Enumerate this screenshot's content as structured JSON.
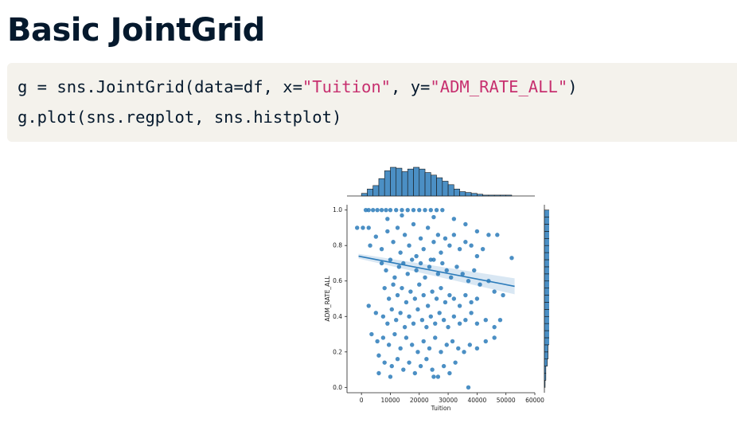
{
  "slide": {
    "title": "Basic JointGrid"
  },
  "code": {
    "line1": {
      "a": "g = sns.JointGrid(data=df, x=",
      "s1": "\"Tuition\"",
      "b": ", y=",
      "s2": "\"ADM_RATE_ALL\"",
      "c": ")"
    },
    "line2": "g.plot(sns.regplot, sns.histplot)"
  },
  "chart_data": {
    "type": "scatter",
    "kind": "jointgrid-regplot-histplot",
    "xlabel": "Tuition",
    "ylabel": "ADM_RATE_ALL",
    "xlim": [
      -5000,
      60000
    ],
    "ylim": [
      -0.03,
      1.03
    ],
    "x_ticks": [
      "0",
      "10000",
      "20000",
      "30000",
      "40000",
      "50000",
      "60000"
    ],
    "y_ticks": [
      "0.0",
      "0.2",
      "0.4",
      "0.6",
      "0.8",
      "1.0"
    ],
    "color": "#2b7bba",
    "edge_color": "#1a1a1a",
    "regression": {
      "x": [
        -1000,
        53000
      ],
      "y": [
        0.74,
        0.57
      ]
    },
    "points": [
      [
        1500,
        1.0
      ],
      [
        2500,
        1.0
      ],
      [
        4000,
        1.0
      ],
      [
        5500,
        1.0
      ],
      [
        7000,
        1.0
      ],
      [
        8500,
        1.0
      ],
      [
        10000,
        1.0
      ],
      [
        12000,
        1.0
      ],
      [
        14000,
        1.0
      ],
      [
        16000,
        1.0
      ],
      [
        18000,
        1.0
      ],
      [
        20000,
        1.0
      ],
      [
        22000,
        1.0
      ],
      [
        24000,
        1.0
      ],
      [
        26000,
        1.0
      ],
      [
        28000,
        1.0
      ],
      [
        -1500,
        0.9
      ],
      [
        500,
        0.9
      ],
      [
        2500,
        0.9
      ],
      [
        9000,
        0.95
      ],
      [
        14000,
        0.97
      ],
      [
        25000,
        0.96
      ],
      [
        32000,
        0.95
      ],
      [
        36000,
        0.92
      ],
      [
        40000,
        0.88
      ],
      [
        44000,
        0.86
      ],
      [
        47000,
        0.86
      ],
      [
        3000,
        0.8
      ],
      [
        5000,
        0.85
      ],
      [
        7000,
        0.78
      ],
      [
        9000,
        0.88
      ],
      [
        11000,
        0.82
      ],
      [
        12500,
        0.9
      ],
      [
        13500,
        0.76
      ],
      [
        15000,
        0.86
      ],
      [
        16500,
        0.8
      ],
      [
        18000,
        0.92
      ],
      [
        19000,
        0.74
      ],
      [
        20500,
        0.84
      ],
      [
        21500,
        0.78
      ],
      [
        23000,
        0.9
      ],
      [
        24000,
        0.72
      ],
      [
        25000,
        0.82
      ],
      [
        26500,
        0.86
      ],
      [
        27500,
        0.76
      ],
      [
        29000,
        0.84
      ],
      [
        30500,
        0.8
      ],
      [
        32000,
        0.86
      ],
      [
        34000,
        0.78
      ],
      [
        36000,
        0.82
      ],
      [
        38000,
        0.8
      ],
      [
        40000,
        0.74
      ],
      [
        42000,
        0.78
      ],
      [
        52000,
        0.73
      ],
      [
        7000,
        0.7
      ],
      [
        8500,
        0.66
      ],
      [
        10000,
        0.72
      ],
      [
        11500,
        0.62
      ],
      [
        13000,
        0.68
      ],
      [
        14500,
        0.7
      ],
      [
        16000,
        0.64
      ],
      [
        17500,
        0.72
      ],
      [
        19000,
        0.66
      ],
      [
        20500,
        0.7
      ],
      [
        22000,
        0.62
      ],
      [
        23500,
        0.68
      ],
      [
        25000,
        0.72
      ],
      [
        26500,
        0.64
      ],
      [
        28000,
        0.7
      ],
      [
        29500,
        0.66
      ],
      [
        31000,
        0.62
      ],
      [
        33000,
        0.68
      ],
      [
        35000,
        0.64
      ],
      [
        37000,
        0.6
      ],
      [
        39000,
        0.66
      ],
      [
        41000,
        0.58
      ],
      [
        44000,
        0.6
      ],
      [
        46000,
        0.54
      ],
      [
        49000,
        0.52
      ],
      [
        8000,
        0.56
      ],
      [
        9500,
        0.5
      ],
      [
        11000,
        0.58
      ],
      [
        12500,
        0.52
      ],
      [
        14000,
        0.56
      ],
      [
        15500,
        0.48
      ],
      [
        17000,
        0.54
      ],
      [
        18500,
        0.5
      ],
      [
        20000,
        0.58
      ],
      [
        21500,
        0.52
      ],
      [
        23000,
        0.46
      ],
      [
        24500,
        0.54
      ],
      [
        26000,
        0.5
      ],
      [
        27500,
        0.56
      ],
      [
        29000,
        0.48
      ],
      [
        30500,
        0.52
      ],
      [
        32000,
        0.5
      ],
      [
        34000,
        0.46
      ],
      [
        36000,
        0.52
      ],
      [
        38000,
        0.48
      ],
      [
        40000,
        0.5
      ],
      [
        2500,
        0.46
      ],
      [
        5000,
        0.42
      ],
      [
        7500,
        0.4
      ],
      [
        9000,
        0.36
      ],
      [
        10500,
        0.44
      ],
      [
        12000,
        0.38
      ],
      [
        13500,
        0.42
      ],
      [
        15000,
        0.34
      ],
      [
        16500,
        0.4
      ],
      [
        18000,
        0.36
      ],
      [
        19500,
        0.44
      ],
      [
        21000,
        0.38
      ],
      [
        22500,
        0.34
      ],
      [
        24000,
        0.4
      ],
      [
        25500,
        0.36
      ],
      [
        27000,
        0.42
      ],
      [
        28500,
        0.38
      ],
      [
        30000,
        0.34
      ],
      [
        32000,
        0.4
      ],
      [
        34000,
        0.36
      ],
      [
        36000,
        0.38
      ],
      [
        38000,
        0.42
      ],
      [
        40000,
        0.36
      ],
      [
        43000,
        0.38
      ],
      [
        46000,
        0.34
      ],
      [
        48000,
        0.38
      ],
      [
        3500,
        0.3
      ],
      [
        5500,
        0.26
      ],
      [
        7500,
        0.28
      ],
      [
        9500,
        0.24
      ],
      [
        11500,
        0.3
      ],
      [
        13500,
        0.22
      ],
      [
        15500,
        0.28
      ],
      [
        17500,
        0.24
      ],
      [
        19500,
        0.2
      ],
      [
        21500,
        0.26
      ],
      [
        23500,
        0.22
      ],
      [
        25500,
        0.28
      ],
      [
        27500,
        0.2
      ],
      [
        29500,
        0.24
      ],
      [
        31500,
        0.26
      ],
      [
        33500,
        0.22
      ],
      [
        35500,
        0.2
      ],
      [
        37500,
        0.24
      ],
      [
        40000,
        0.22
      ],
      [
        43000,
        0.26
      ],
      [
        46000,
        0.28
      ],
      [
        6000,
        0.18
      ],
      [
        8000,
        0.14
      ],
      [
        10500,
        0.12
      ],
      [
        12500,
        0.16
      ],
      [
        14500,
        0.1
      ],
      [
        16500,
        0.14
      ],
      [
        18500,
        0.08
      ],
      [
        20500,
        0.12
      ],
      [
        22500,
        0.16
      ],
      [
        24500,
        0.1
      ],
      [
        26500,
        0.06
      ],
      [
        28500,
        0.12
      ],
      [
        30500,
        0.08
      ],
      [
        32500,
        0.14
      ],
      [
        10000,
        0.06
      ],
      [
        6000,
        0.08
      ],
      [
        25000,
        0.06
      ],
      [
        37000,
        0.0
      ]
    ],
    "x_hist": [
      {
        "from": 0,
        "to": 2000,
        "count": 3
      },
      {
        "from": 2000,
        "to": 4000,
        "count": 8
      },
      {
        "from": 4000,
        "to": 6000,
        "count": 12
      },
      {
        "from": 6000,
        "to": 8000,
        "count": 20
      },
      {
        "from": 8000,
        "to": 10000,
        "count": 29
      },
      {
        "from": 10000,
        "to": 12000,
        "count": 33
      },
      {
        "from": 12000,
        "to": 14000,
        "count": 32
      },
      {
        "from": 14000,
        "to": 16000,
        "count": 28
      },
      {
        "from": 16000,
        "to": 18000,
        "count": 31
      },
      {
        "from": 18000,
        "to": 20000,
        "count": 33
      },
      {
        "from": 20000,
        "to": 22000,
        "count": 31
      },
      {
        "from": 22000,
        "to": 24000,
        "count": 27
      },
      {
        "from": 24000,
        "to": 26000,
        "count": 24
      },
      {
        "from": 26000,
        "to": 28000,
        "count": 21
      },
      {
        "from": 28000,
        "to": 30000,
        "count": 17
      },
      {
        "from": 30000,
        "to": 32000,
        "count": 13
      },
      {
        "from": 32000,
        "to": 34000,
        "count": 8
      },
      {
        "from": 34000,
        "to": 36000,
        "count": 5
      },
      {
        "from": 36000,
        "to": 38000,
        "count": 4
      },
      {
        "from": 38000,
        "to": 40000,
        "count": 3
      },
      {
        "from": 40000,
        "to": 42000,
        "count": 2
      },
      {
        "from": 42000,
        "to": 44000,
        "count": 1
      },
      {
        "from": 44000,
        "to": 46000,
        "count": 1
      },
      {
        "from": 46000,
        "to": 48000,
        "count": 1
      },
      {
        "from": 48000,
        "to": 50000,
        "count": 1
      },
      {
        "from": 50000,
        "to": 52000,
        "count": 1
      }
    ],
    "y_hist": [
      {
        "from": 0.0,
        "to": 0.04,
        "count": 1
      },
      {
        "from": 0.04,
        "to": 0.08,
        "count": 2
      },
      {
        "from": 0.08,
        "to": 0.12,
        "count": 2
      },
      {
        "from": 0.12,
        "to": 0.16,
        "count": 4
      },
      {
        "from": 0.16,
        "to": 0.2,
        "count": 5
      },
      {
        "from": 0.2,
        "to": 0.24,
        "count": 5
      },
      {
        "from": 0.24,
        "to": 0.28,
        "count": 7
      },
      {
        "from": 0.28,
        "to": 0.32,
        "count": 9
      },
      {
        "from": 0.32,
        "to": 0.36,
        "count": 13
      },
      {
        "from": 0.36,
        "to": 0.4,
        "count": 13
      },
      {
        "from": 0.4,
        "to": 0.44,
        "count": 21
      },
      {
        "from": 0.44,
        "to": 0.48,
        "count": 23
      },
      {
        "from": 0.48,
        "to": 0.52,
        "count": 26
      },
      {
        "from": 0.52,
        "to": 0.56,
        "count": 27
      },
      {
        "from": 0.56,
        "to": 0.6,
        "count": 30
      },
      {
        "from": 0.6,
        "to": 0.64,
        "count": 37
      },
      {
        "from": 0.64,
        "to": 0.68,
        "count": 36
      },
      {
        "from": 0.68,
        "to": 0.72,
        "count": 35
      },
      {
        "from": 0.72,
        "to": 0.76,
        "count": 38
      },
      {
        "from": 0.76,
        "to": 0.8,
        "count": 40
      },
      {
        "from": 0.8,
        "to": 0.84,
        "count": 39
      },
      {
        "from": 0.84,
        "to": 0.88,
        "count": 31
      },
      {
        "from": 0.88,
        "to": 0.92,
        "count": 27
      },
      {
        "from": 0.92,
        "to": 0.96,
        "count": 24
      },
      {
        "from": 0.96,
        "to": 1.0,
        "count": 35
      }
    ]
  }
}
